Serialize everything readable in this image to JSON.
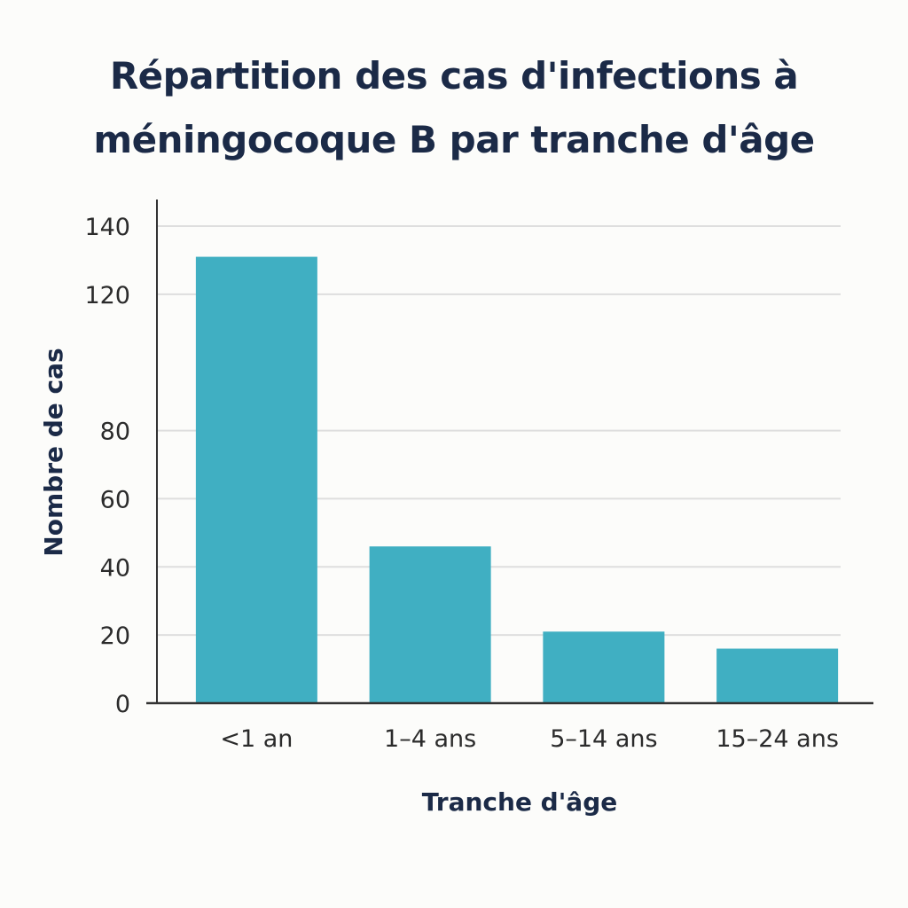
{
  "chart_data": {
    "type": "bar",
    "title": "Répartition des cas d'infections à méningocoque B par tranche d'âge",
    "title_lines": [
      "Répartition des cas d'infections à",
      "méningocoque B par tranche d'âge"
    ],
    "xlabel": "Tranche d'âge",
    "ylabel": "Nombre de cas",
    "categories": [
      "<1 an",
      "1–4 ans",
      "5–14 ans",
      "15–24 ans"
    ],
    "values": [
      131,
      46,
      21,
      16
    ],
    "y_ticks": [
      0,
      20,
      40,
      60,
      80,
      120,
      140
    ],
    "ylim": [
      0,
      140
    ],
    "grid": true,
    "legend": "none",
    "bar_color": "#40afc2",
    "title_color": "#1b2a47",
    "grid_color": "#dedede",
    "axis_color": "#333333"
  }
}
